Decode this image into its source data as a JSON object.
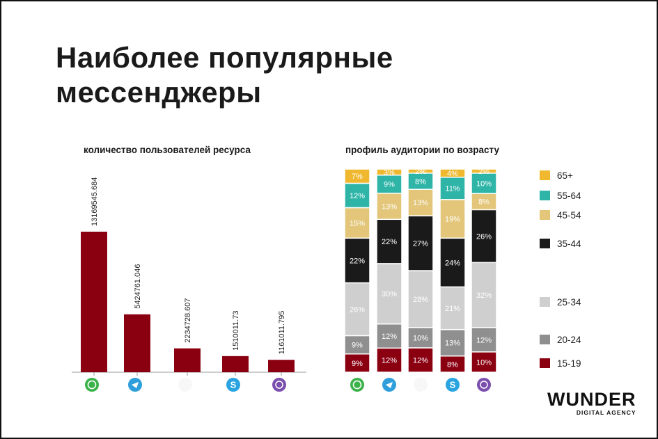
{
  "title_line1": "Наиболее популярные",
  "title_line2": "мессенджеры",
  "logo": {
    "name": "WUNDER",
    "tagline": "DIGITAL AGENCY"
  },
  "colors": {
    "bar": "#8b0011"
  },
  "chart_data": [
    {
      "type": "bar",
      "title": "количество пользователей ресурса",
      "categories": [
        "WhatsApp",
        "Telegram",
        "Facebook Messenger",
        "Skype",
        "Viber"
      ],
      "icons": [
        "whatsapp-icon",
        "telegram-icon",
        "messenger-icon",
        "skype-icon",
        "viber-icon"
      ],
      "values": [
        13169545.684,
        5424761.046,
        2234728.607,
        1510011.73,
        1161011.795
      ],
      "value_labels": [
        "13169545.684",
        "5424761.046",
        "2234728.607",
        "1510011.73",
        "1161011.795"
      ],
      "ylim": [
        0,
        14500000
      ]
    },
    {
      "type": "bar",
      "stacked": true,
      "title": "профиль аудитории по возрасту",
      "categories": [
        "WhatsApp",
        "Telegram",
        "Facebook Messenger",
        "Skype",
        "Viber"
      ],
      "series": [
        {
          "name": "15-19",
          "color": "#8b0011",
          "values": [
            9,
            12,
            12,
            8,
            10
          ]
        },
        {
          "name": "20-24",
          "color": "#8f8f8f",
          "values": [
            9,
            12,
            10,
            13,
            12
          ]
        },
        {
          "name": "25-34",
          "color": "#cfcfcf",
          "values": [
            26,
            30,
            28,
            21,
            32
          ]
        },
        {
          "name": "35-44",
          "color": "#1a1a1a",
          "values": [
            22,
            22,
            27,
            24,
            26
          ]
        },
        {
          "name": "45-54",
          "color": "#e3c67a",
          "values": [
            15,
            13,
            13,
            19,
            8
          ]
        },
        {
          "name": "55-64",
          "color": "#2fb5a8",
          "values": [
            12,
            9,
            8,
            11,
            10
          ]
        },
        {
          "name": "65+",
          "color": "#f0b82e",
          "values": [
            7,
            3,
            2,
            4,
            2
          ]
        }
      ],
      "legend_position": "right"
    }
  ]
}
